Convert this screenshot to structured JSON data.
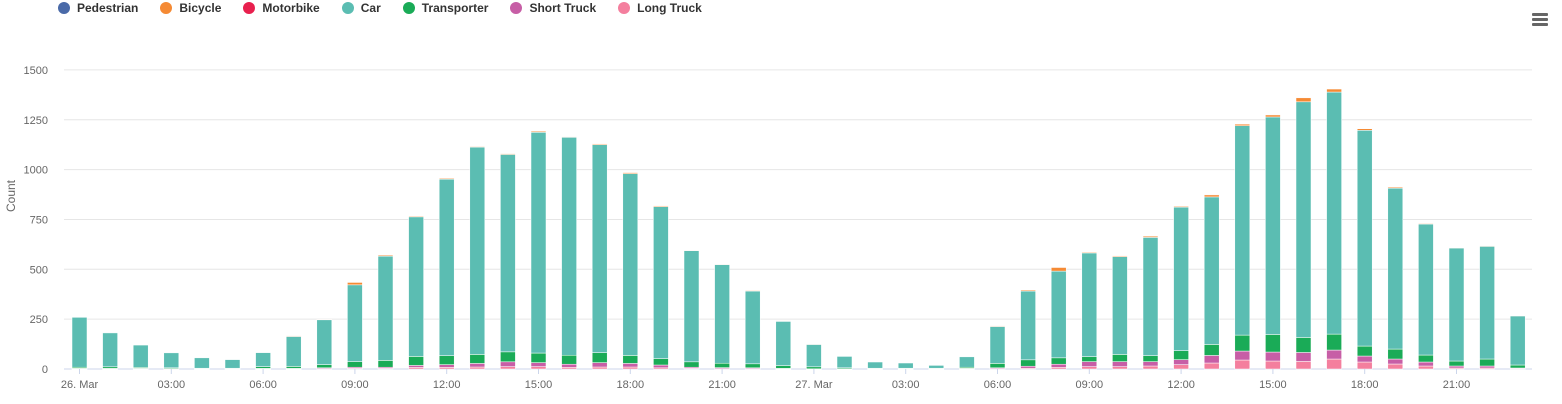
{
  "menu_icon": "hamburger-menu-icon",
  "chart_data": {
    "type": "bar",
    "stacked": true,
    "title": "",
    "xlabel": "",
    "ylabel": "Count",
    "ylim": [
      0,
      1650
    ],
    "grid": true,
    "legend_position": "top-left",
    "y_ticks": [
      "0",
      "250",
      "500",
      "750",
      "1000",
      "1250",
      "1500"
    ],
    "x_tick_labels": [
      "26. Mar",
      "03:00",
      "06:00",
      "09:00",
      "12:00",
      "15:00",
      "18:00",
      "21:00",
      "27. Mar",
      "03:00",
      "06:00",
      "09:00",
      "12:00",
      "15:00",
      "18:00",
      "21:00"
    ],
    "categories": [
      "26 Mar 00:00",
      "26 Mar 01:00",
      "26 Mar 02:00",
      "26 Mar 03:00",
      "26 Mar 04:00",
      "26 Mar 05:00",
      "26 Mar 06:00",
      "26 Mar 07:00",
      "26 Mar 08:00",
      "26 Mar 09:00",
      "26 Mar 10:00",
      "26 Mar 11:00",
      "26 Mar 12:00",
      "26 Mar 13:00",
      "26 Mar 14:00",
      "26 Mar 15:00",
      "26 Mar 16:00",
      "26 Mar 17:00",
      "26 Mar 18:00",
      "26 Mar 19:00",
      "26 Mar 20:00",
      "26 Mar 21:00",
      "26 Mar 22:00",
      "26 Mar 23:00",
      "27 Mar 00:00",
      "27 Mar 01:00",
      "27 Mar 02:00",
      "27 Mar 03:00",
      "27 Mar 04:00",
      "27 Mar 05:00",
      "27 Mar 06:00",
      "27 Mar 07:00",
      "27 Mar 08:00",
      "27 Mar 09:00",
      "27 Mar 10:00",
      "27 Mar 11:00",
      "27 Mar 12:00",
      "27 Mar 13:00",
      "27 Mar 14:00",
      "27 Mar 15:00",
      "27 Mar 16:00",
      "27 Mar 17:00",
      "27 Mar 18:00",
      "27 Mar 19:00",
      "27 Mar 20:00",
      "27 Mar 21:00",
      "27 Mar 22:00",
      "27 Mar 23:00"
    ],
    "series": [
      {
        "name": "Pedestrian",
        "color": "#4a6aa8",
        "values": [
          0,
          0,
          0,
          0,
          0,
          0,
          0,
          0,
          0,
          0,
          0,
          0,
          0,
          0,
          0,
          0,
          0,
          0,
          0,
          0,
          0,
          0,
          0,
          0,
          0,
          0,
          0,
          0,
          0,
          0,
          0,
          0,
          0,
          0,
          0,
          0,
          0,
          0,
          0,
          0,
          0,
          0,
          0,
          0,
          0,
          0,
          0,
          0
        ]
      },
      {
        "name": "Bicycle",
        "color": "#f58a34",
        "values": [
          0,
          0,
          0,
          0,
          0,
          0,
          0,
          3,
          2,
          12,
          5,
          4,
          4,
          3,
          4,
          5,
          3,
          4,
          5,
          4,
          2,
          2,
          3,
          1,
          1,
          0,
          0,
          0,
          0,
          0,
          3,
          5,
          18,
          4,
          4,
          6,
          4,
          10,
          8,
          10,
          20,
          15,
          8,
          5,
          3,
          2,
          3,
          1
        ]
      },
      {
        "name": "Motorbike",
        "color": "#e8204e",
        "values": [
          0,
          0,
          0,
          0,
          0,
          0,
          0,
          0,
          0,
          0,
          0,
          0,
          0,
          0,
          0,
          0,
          0,
          0,
          0,
          0,
          0,
          0,
          0,
          0,
          0,
          0,
          0,
          0,
          0,
          0,
          0,
          0,
          0,
          0,
          0,
          0,
          0,
          0,
          0,
          0,
          0,
          0,
          0,
          0,
          0,
          0,
          0,
          0
        ]
      },
      {
        "name": "Car",
        "color": "#5bbdb2",
        "values": [
          250,
          170,
          112,
          75,
          52,
          43,
          70,
          150,
          225,
          385,
          523,
          700,
          885,
          1040,
          990,
          1107,
          1093,
          1043,
          912,
          762,
          558,
          495,
          365,
          223,
          113,
          57,
          31,
          26,
          14,
          52,
          185,
          345,
          435,
          520,
          490,
          593,
          720,
          740,
          1050,
          1091,
          1182,
          1214,
          1082,
          807,
          657,
          567,
          565,
          247
        ]
      },
      {
        "name": "Transporter",
        "color": "#1aab57",
        "values": [
          6,
          8,
          5,
          4,
          3,
          3,
          9,
          10,
          16,
          28,
          34,
          45,
          45,
          45,
          50,
          48,
          45,
          50,
          40,
          32,
          27,
          22,
          20,
          14,
          10,
          5,
          3,
          3,
          3,
          6,
          22,
          32,
          32,
          25,
          36,
          30,
          45,
          55,
          80,
          88,
          75,
          80,
          50,
          50,
          35,
          25,
          35,
          15
        ]
      },
      {
        "name": "Short Truck",
        "color": "#c75ea6",
        "values": [
          2,
          2,
          2,
          1,
          1,
          1,
          2,
          2,
          4,
          6,
          6,
          10,
          14,
          18,
          24,
          20,
          16,
          22,
          18,
          14,
          6,
          5,
          4,
          2,
          1,
          1,
          1,
          1,
          1,
          2,
          4,
          10,
          16,
          25,
          25,
          22,
          25,
          38,
          45,
          45,
          45,
          45,
          30,
          25,
          20,
          10,
          10,
          3
        ]
      },
      {
        "name": "Long Truck",
        "color": "#f47f9e",
        "values": [
          1,
          1,
          1,
          1,
          0,
          0,
          1,
          1,
          2,
          3,
          3,
          8,
          8,
          10,
          12,
          12,
          8,
          10,
          10,
          6,
          3,
          2,
          2,
          1,
          0,
          0,
          0,
          0,
          0,
          1,
          2,
          4,
          8,
          12,
          12,
          15,
          22,
          30,
          45,
          40,
          38,
          50,
          35,
          25,
          15,
          5,
          5,
          2
        ]
      }
    ]
  }
}
